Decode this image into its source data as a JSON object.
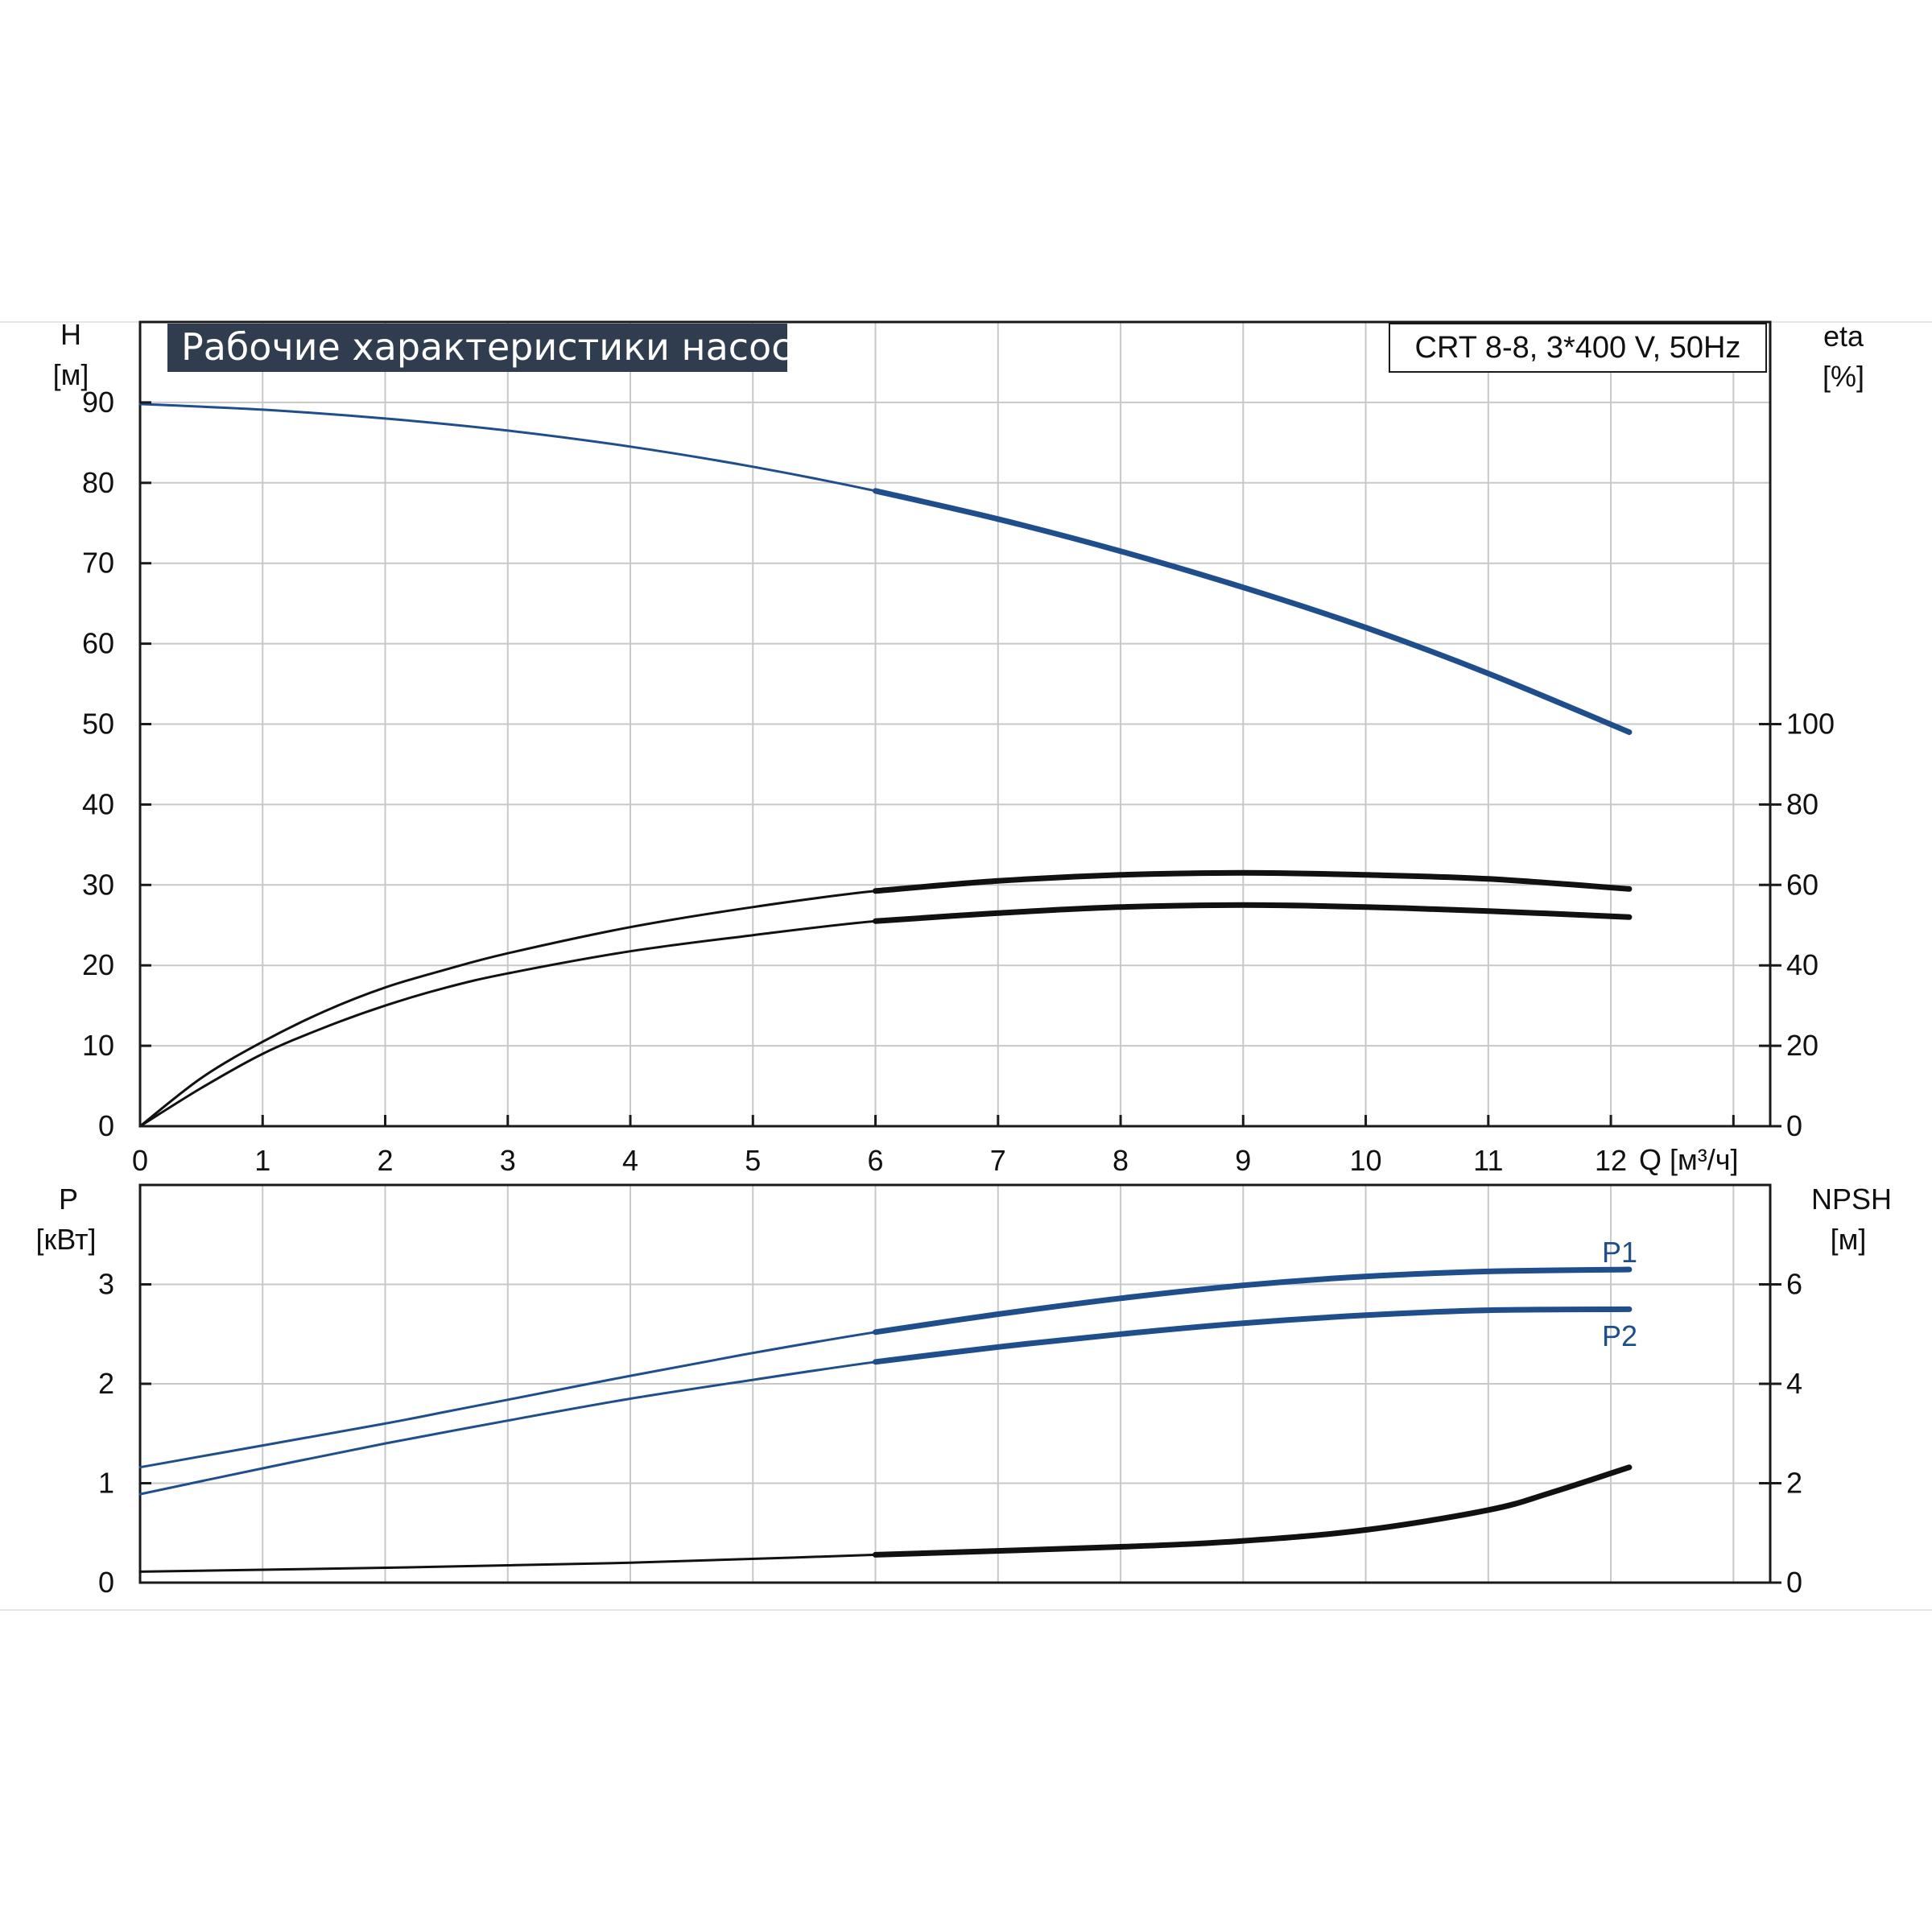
{
  "colors": {
    "grid": "#c8c8c8",
    "frame": "#1a1a1a",
    "head_curve": "#1f4e8c",
    "eta_curve": "#111111",
    "power_curve": "#1f4e8c",
    "npsh_curve": "#111111",
    "title_bg": "#2f3d4f",
    "title_fg": "#ffffff"
  },
  "chart_data": [
    {
      "type": "line",
      "title": "Рабочие характеристики насоса",
      "subtitle": "CRT 8-8, 3*400 V, 50Hz",
      "xlabel": "Q [м³/ч]",
      "ylabel_left": {
        "name": "H",
        "unit": "[м]"
      },
      "ylabel_right": {
        "name": "eta",
        "unit": "[%]"
      },
      "xlim": [
        0,
        13.3
      ],
      "ylim_left": [
        0,
        100
      ],
      "ylim_right": [
        0,
        200
      ],
      "grid": true,
      "x_ticks": [
        0,
        1,
        2,
        3,
        4,
        5,
        6,
        7,
        8,
        9,
        10,
        11,
        12
      ],
      "y_ticks_left": [
        0,
        10,
        20,
        30,
        40,
        50,
        60,
        70,
        80,
        90
      ],
      "y_ticks_right": [
        0,
        20,
        40,
        60,
        80,
        100
      ],
      "series": [
        {
          "axis": "left",
          "x": [
            0,
            1,
            2,
            3,
            4,
            5,
            6,
            7,
            8,
            9,
            10,
            11,
            12.15
          ],
          "y": [
            89.8,
            89.1,
            88.0,
            86.5,
            84.5,
            82.0,
            79.0,
            75.5,
            71.5,
            67.0,
            62.0,
            56.3,
            49.0
          ]
        },
        {
          "axis": "right",
          "x": [
            0,
            0.5,
            1,
            1.5,
            2,
            2.5,
            3,
            4,
            5,
            6,
            7,
            8,
            9,
            10,
            11,
            12.15
          ],
          "y": [
            0,
            12,
            21,
            28.5,
            34.5,
            39,
            43,
            49.5,
            54.5,
            58.5,
            61,
            62.5,
            63,
            62.5,
            61.5,
            59
          ]
        },
        {
          "axis": "right",
          "x": [
            0,
            0.5,
            1,
            1.5,
            2,
            2.5,
            3,
            4,
            5,
            6,
            7,
            8,
            9,
            10,
            11,
            12.15
          ],
          "y": [
            0,
            9.5,
            18,
            24.5,
            30,
            34.5,
            38,
            43.5,
            47.5,
            51,
            53,
            54.5,
            55,
            54.5,
            53.5,
            52
          ]
        }
      ]
    },
    {
      "type": "line",
      "ylabel_left": {
        "name": "P",
        "unit": "[кВт]"
      },
      "ylabel_right": {
        "name": "NPSH",
        "unit": "[м]"
      },
      "xlim": [
        0,
        13.3
      ],
      "ylim_left": [
        0,
        4
      ],
      "ylim_right": [
        0,
        8
      ],
      "grid": true,
      "y_ticks_left": [
        0,
        1,
        2,
        3
      ],
      "y_ticks_right": [
        0,
        2,
        4,
        6
      ],
      "series": [
        {
          "name": "P1",
          "axis": "left",
          "x": [
            0,
            1,
            2,
            2.5,
            3,
            4,
            5,
            6,
            7,
            8,
            9,
            10,
            11,
            12.15
          ],
          "y": [
            1.16,
            1.38,
            1.6,
            1.72,
            1.84,
            2.08,
            2.31,
            2.52,
            2.7,
            2.86,
            2.99,
            3.08,
            3.13,
            3.15
          ]
        },
        {
          "name": "P2",
          "axis": "left",
          "x": [
            0,
            1,
            2,
            3,
            4,
            5,
            6,
            7,
            8,
            9,
            10,
            11,
            12.15
          ],
          "y": [
            0.89,
            1.15,
            1.4,
            1.63,
            1.85,
            2.04,
            2.22,
            2.37,
            2.5,
            2.61,
            2.69,
            2.74,
            2.75
          ]
        },
        {
          "axis": "right",
          "x": [
            0,
            2,
            4,
            6,
            8,
            9,
            10,
            11,
            11.5,
            12.15
          ],
          "y": [
            0.22,
            0.3,
            0.4,
            0.56,
            0.72,
            0.84,
            1.06,
            1.46,
            1.8,
            2.32
          ]
        }
      ]
    }
  ]
}
